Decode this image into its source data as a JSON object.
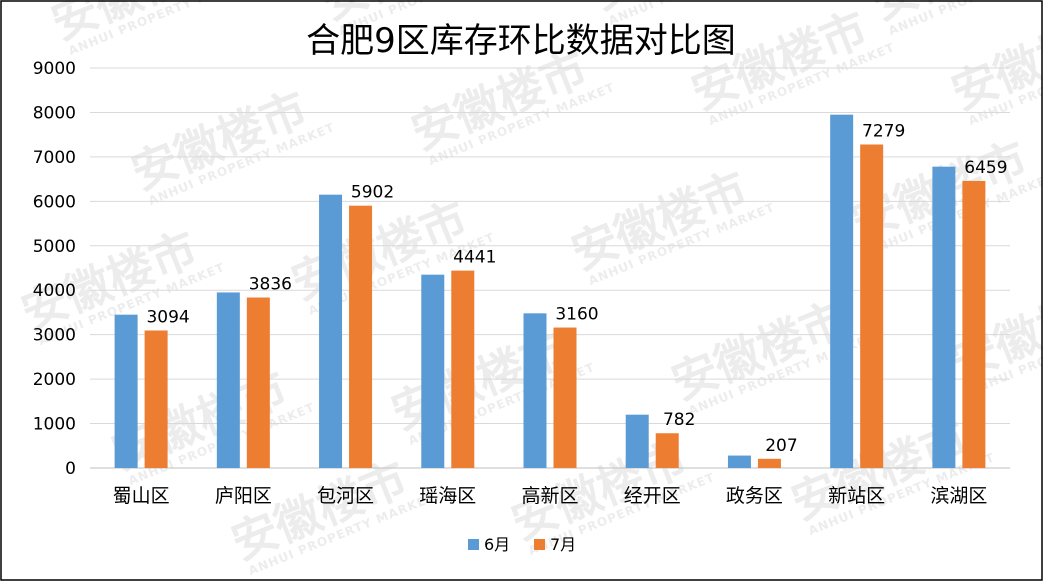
{
  "chart_data": {
    "type": "bar",
    "title": "合肥9区库存环比数据对比图",
    "categories": [
      "蜀山区",
      "庐阳区",
      "包河区",
      "瑶海区",
      "高新区",
      "经开区",
      "政务区",
      "新站区",
      "滨湖区"
    ],
    "series": [
      {
        "name": "6月",
        "color": "#5B9BD5",
        "values": [
          3450,
          3950,
          6150,
          4350,
          3480,
          1200,
          280,
          7950,
          6780
        ]
      },
      {
        "name": "7月",
        "color": "#ED7D31",
        "values": [
          3094,
          3836,
          5902,
          4441,
          3160,
          782,
          207,
          7279,
          6459
        ]
      }
    ],
    "data_labels_series": "7月",
    "ylim": [
      0,
      9000
    ],
    "yticks": [
      "0",
      "1000",
      "2000",
      "3000",
      "4000",
      "5000",
      "6000",
      "7000",
      "8000",
      "9000"
    ],
    "xlabel": "",
    "ylabel": "",
    "grid": true,
    "legend_position": "bottom"
  },
  "watermark": {
    "brand_text": "安徽楼市",
    "sub_text": "ANHUI PROPERTY MARKET"
  }
}
